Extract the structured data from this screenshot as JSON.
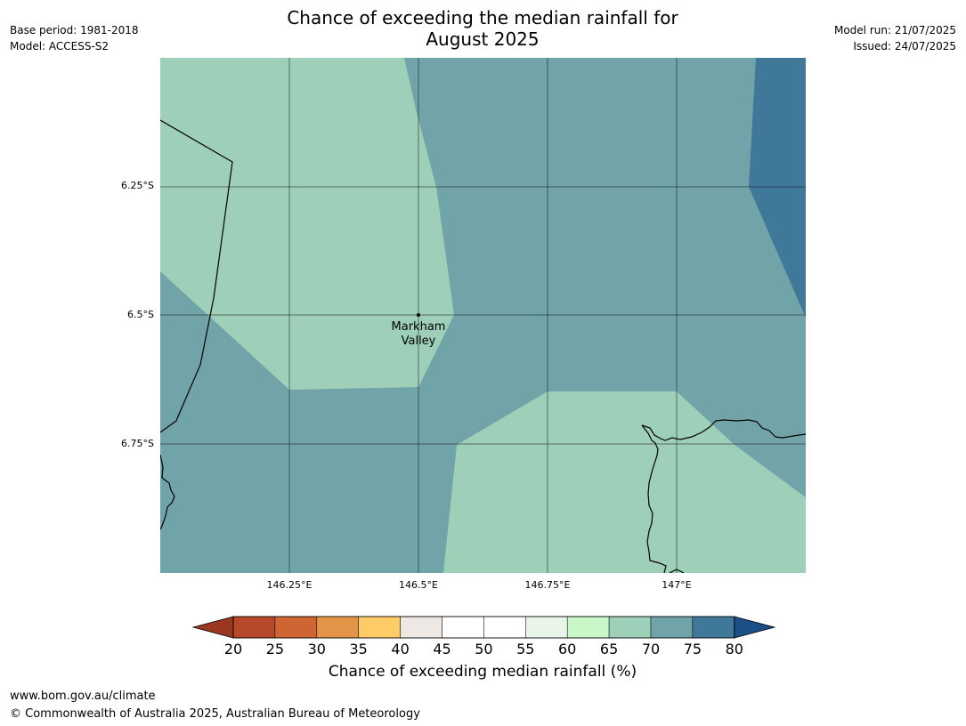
{
  "title_line1": "Chance of exceeding the median rainfall for",
  "title_line2": "August 2025",
  "meta_left": {
    "base_period": "Base period: 1981-2018",
    "model": "Model: ACCESS-S2"
  },
  "meta_right": {
    "model_run": "Model run: 21/07/2025",
    "issued": "Issued: 24/07/2025"
  },
  "map": {
    "lat_labels": [
      "6.25°S",
      "6.5°S",
      "6.75°S"
    ],
    "lon_labels": [
      "146.25°E",
      "146.5°E",
      "146.75°E",
      "147°E"
    ],
    "place": {
      "line1": "Markham",
      "line2": "Valley"
    },
    "colors": {
      "band_65_70": "#9ed0b9",
      "band_70_75": "#70a4a8",
      "band_75_80": "#3f7898"
    }
  },
  "colorbar": {
    "ticks": [
      "20",
      "25",
      "30",
      "35",
      "40",
      "45",
      "50",
      "55",
      "60",
      "65",
      "70",
      "75",
      "80"
    ],
    "colors": [
      "#993720",
      "#b5492a",
      "#cf6533",
      "#e29447",
      "#fecb67",
      "#ede8e4",
      "#ffffff",
      "#ffffff",
      "#e9f5e9",
      "#caf7c8",
      "#9ed0b9",
      "#70a4a8",
      "#3f7898",
      "#1a4f88"
    ],
    "label": "Chance of exceeding median rainfall (%)"
  },
  "footer": {
    "url": "www.bom.gov.au/climate",
    "copyright": "© Commonwealth of Australia 2025, Australian Bureau of Meteorology"
  }
}
